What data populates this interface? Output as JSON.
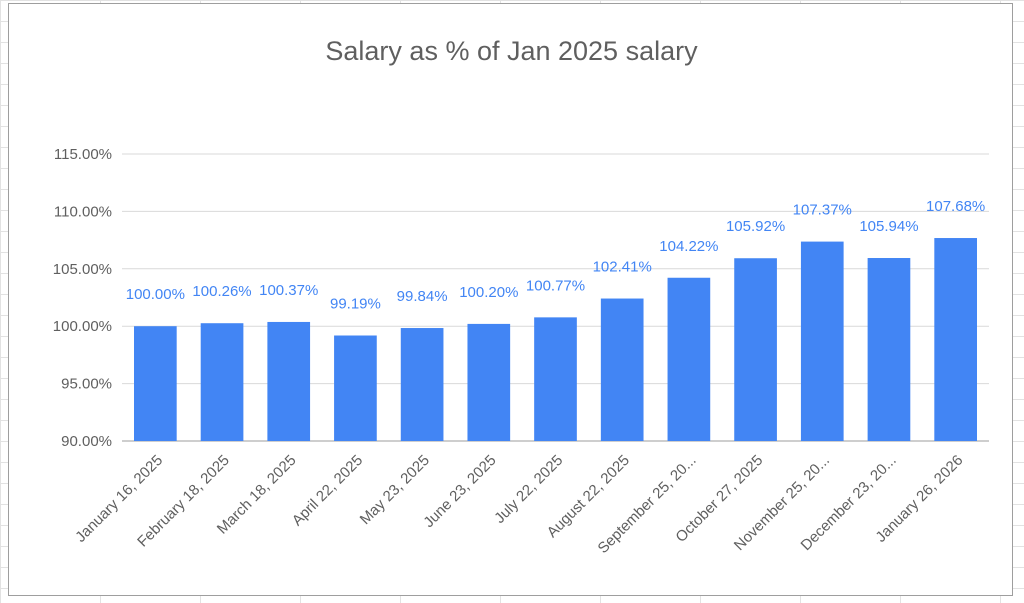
{
  "chart_data": {
    "type": "bar",
    "title": "Salary as % of Jan 2025 salary",
    "xlabel": "",
    "ylabel": "",
    "ylim": [
      90,
      115
    ],
    "y_ticks": [
      "90.00%",
      "95.00%",
      "100.00%",
      "105.00%",
      "110.00%",
      "115.00%"
    ],
    "y_tick_values": [
      90,
      95,
      100,
      105,
      110,
      115
    ],
    "categories": [
      "January 16, 2025",
      "February 18, 2025",
      "March 18, 2025",
      "April 22, 2025",
      "May 23, 2025",
      "June 23, 2025",
      "July 22, 2025",
      "August 22, 2025",
      "September 25, 20...",
      "October 27, 2025",
      "November 25, 20...",
      "December 23, 20...",
      "January 26, 2026"
    ],
    "values": [
      100.0,
      100.26,
      100.37,
      99.19,
      99.84,
      100.2,
      100.77,
      102.41,
      104.22,
      105.92,
      107.37,
      105.94,
      107.68
    ],
    "data_labels": [
      "100.00%",
      "100.26%",
      "100.37%",
      "99.19%",
      "99.84%",
      "100.20%",
      "100.77%",
      "102.41%",
      "104.22%",
      "105.92%",
      "107.37%",
      "105.94%",
      "107.68%"
    ],
    "bar_color": "#4285f4",
    "grid": true,
    "legend": "none"
  }
}
